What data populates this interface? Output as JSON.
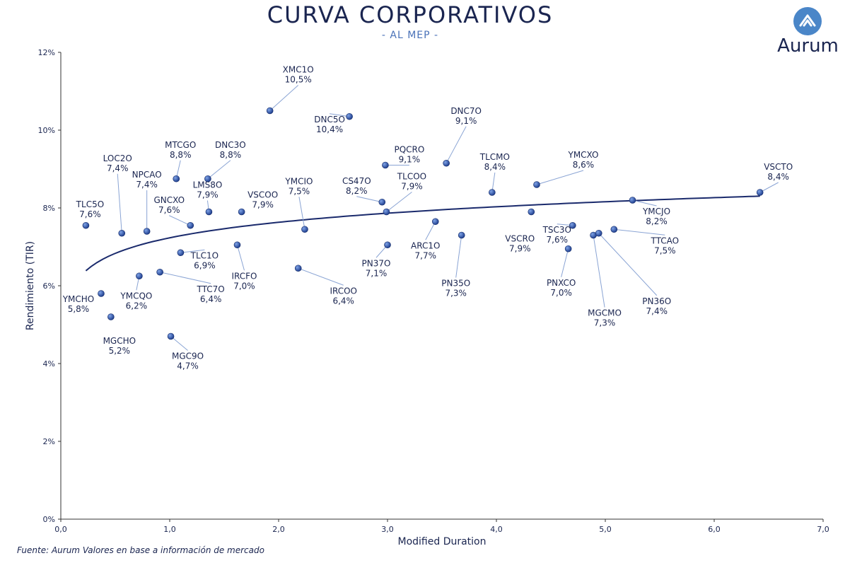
{
  "header": {
    "title": "CURVA CORPORATIVOS",
    "subtitle": "- AL MEP -"
  },
  "logo": {
    "text": "Aurum",
    "icon": "aurum-logo-icon"
  },
  "footer": {
    "source": "Fuente: Aurum Valores en base a información de mercado"
  },
  "colors": {
    "point": "#1f3f8f",
    "trend": "#1a2a6c",
    "leader": "#8aa4d4",
    "text": "#1a2550"
  },
  "chart_data": {
    "type": "scatter",
    "xlabel": "Modified Duration",
    "ylabel": "Rendimiento (TIR)",
    "xlim": [
      0,
      7
    ],
    "ylim": [
      0,
      12
    ],
    "x_ticks": [
      "0,0",
      "1,0",
      "2,0",
      "3,0",
      "4,0",
      "5,0",
      "6,0",
      "7,0"
    ],
    "y_ticks": [
      "0%",
      "2%",
      "4%",
      "6%",
      "8%",
      "10%",
      "12%"
    ],
    "trendline": {
      "type": "logarithmic",
      "x_range": [
        0.23,
        6.42
      ]
    },
    "points": [
      {
        "name": "TLC5O",
        "value_label": "7,6%",
        "x": 0.23,
        "y": 7.55
      },
      {
        "name": "YMCHO",
        "value_label": "5,8%",
        "x": 0.37,
        "y": 5.8
      },
      {
        "name": "MGCHO",
        "value_label": "5,2%",
        "x": 0.46,
        "y": 5.2
      },
      {
        "name": "LOC2O",
        "value_label": "7,4%",
        "x": 0.56,
        "y": 7.35
      },
      {
        "name": "YMCQO",
        "value_label": "6,2%",
        "x": 0.72,
        "y": 6.25
      },
      {
        "name": "NPCAO",
        "value_label": "7,4%",
        "x": 0.79,
        "y": 7.4
      },
      {
        "name": "TTC7O",
        "value_label": "6,4%",
        "x": 0.91,
        "y": 6.35
      },
      {
        "name": "MGC9O",
        "value_label": "4,7%",
        "x": 1.01,
        "y": 4.7
      },
      {
        "name": "MTCGO",
        "value_label": "8,8%",
        "x": 1.06,
        "y": 8.75
      },
      {
        "name": "TLC1O",
        "value_label": "6,9%",
        "x": 1.1,
        "y": 6.85
      },
      {
        "name": "GNCXO",
        "value_label": "7,6%",
        "x": 1.19,
        "y": 7.55
      },
      {
        "name": "DNC3O",
        "value_label": "8,8%",
        "x": 1.35,
        "y": 8.75
      },
      {
        "name": "LMS8O",
        "value_label": "7,9%",
        "x": 1.36,
        "y": 7.9
      },
      {
        "name": "IRCFO",
        "value_label": "7,0%",
        "x": 1.62,
        "y": 7.05
      },
      {
        "name": "VSCOO",
        "value_label": "7,9%",
        "x": 1.66,
        "y": 7.9
      },
      {
        "name": "XMC1O",
        "value_label": "10,5%",
        "x": 1.92,
        "y": 10.5
      },
      {
        "name": "IRCOO",
        "value_label": "6,4%",
        "x": 2.18,
        "y": 6.45
      },
      {
        "name": "YMCIO",
        "value_label": "7,5%",
        "x": 2.24,
        "y": 7.45
      },
      {
        "name": "DNC5O",
        "value_label": "10,4%",
        "x": 2.65,
        "y": 10.35
      },
      {
        "name": "CS47O",
        "value_label": "8,2%",
        "x": 2.95,
        "y": 8.15
      },
      {
        "name": "PQCRO",
        "value_label": "9,1%",
        "x": 2.98,
        "y": 9.1
      },
      {
        "name": "TLCOO",
        "value_label": "7,9%",
        "x": 2.99,
        "y": 7.9
      },
      {
        "name": "PN37O",
        "value_label": "7,1%",
        "x": 3.0,
        "y": 7.05
      },
      {
        "name": "ARC1O",
        "value_label": "7,7%",
        "x": 3.44,
        "y": 7.65
      },
      {
        "name": "DNC7O",
        "value_label": "9,1%",
        "x": 3.54,
        "y": 9.15
      },
      {
        "name": "PN35O",
        "value_label": "7,3%",
        "x": 3.68,
        "y": 7.3
      },
      {
        "name": "TLCMO",
        "value_label": "8,4%",
        "x": 3.96,
        "y": 8.4
      },
      {
        "name": "VSCRO",
        "value_label": "7,9%",
        "x": 4.32,
        "y": 7.9
      },
      {
        "name": "YMCXO",
        "value_label": "8,6%",
        "x": 4.37,
        "y": 8.6
      },
      {
        "name": "PNXCO",
        "value_label": "7,0%",
        "x": 4.66,
        "y": 6.95
      },
      {
        "name": "TSC3O",
        "value_label": "7,6%",
        "x": 4.7,
        "y": 7.55
      },
      {
        "name": "MGCMO",
        "value_label": "7,3%",
        "x": 4.89,
        "y": 7.3
      },
      {
        "name": "PN36O",
        "value_label": "7,4%",
        "x": 4.94,
        "y": 7.35
      },
      {
        "name": "TTCAO",
        "value_label": "7,5%",
        "x": 5.08,
        "y": 7.45
      },
      {
        "name": "YMCJO",
        "value_label": "8,2%",
        "x": 5.25,
        "y": 8.2
      },
      {
        "name": "VSCTO",
        "value_label": "8,4%",
        "x": 6.42,
        "y": 8.4
      }
    ]
  }
}
